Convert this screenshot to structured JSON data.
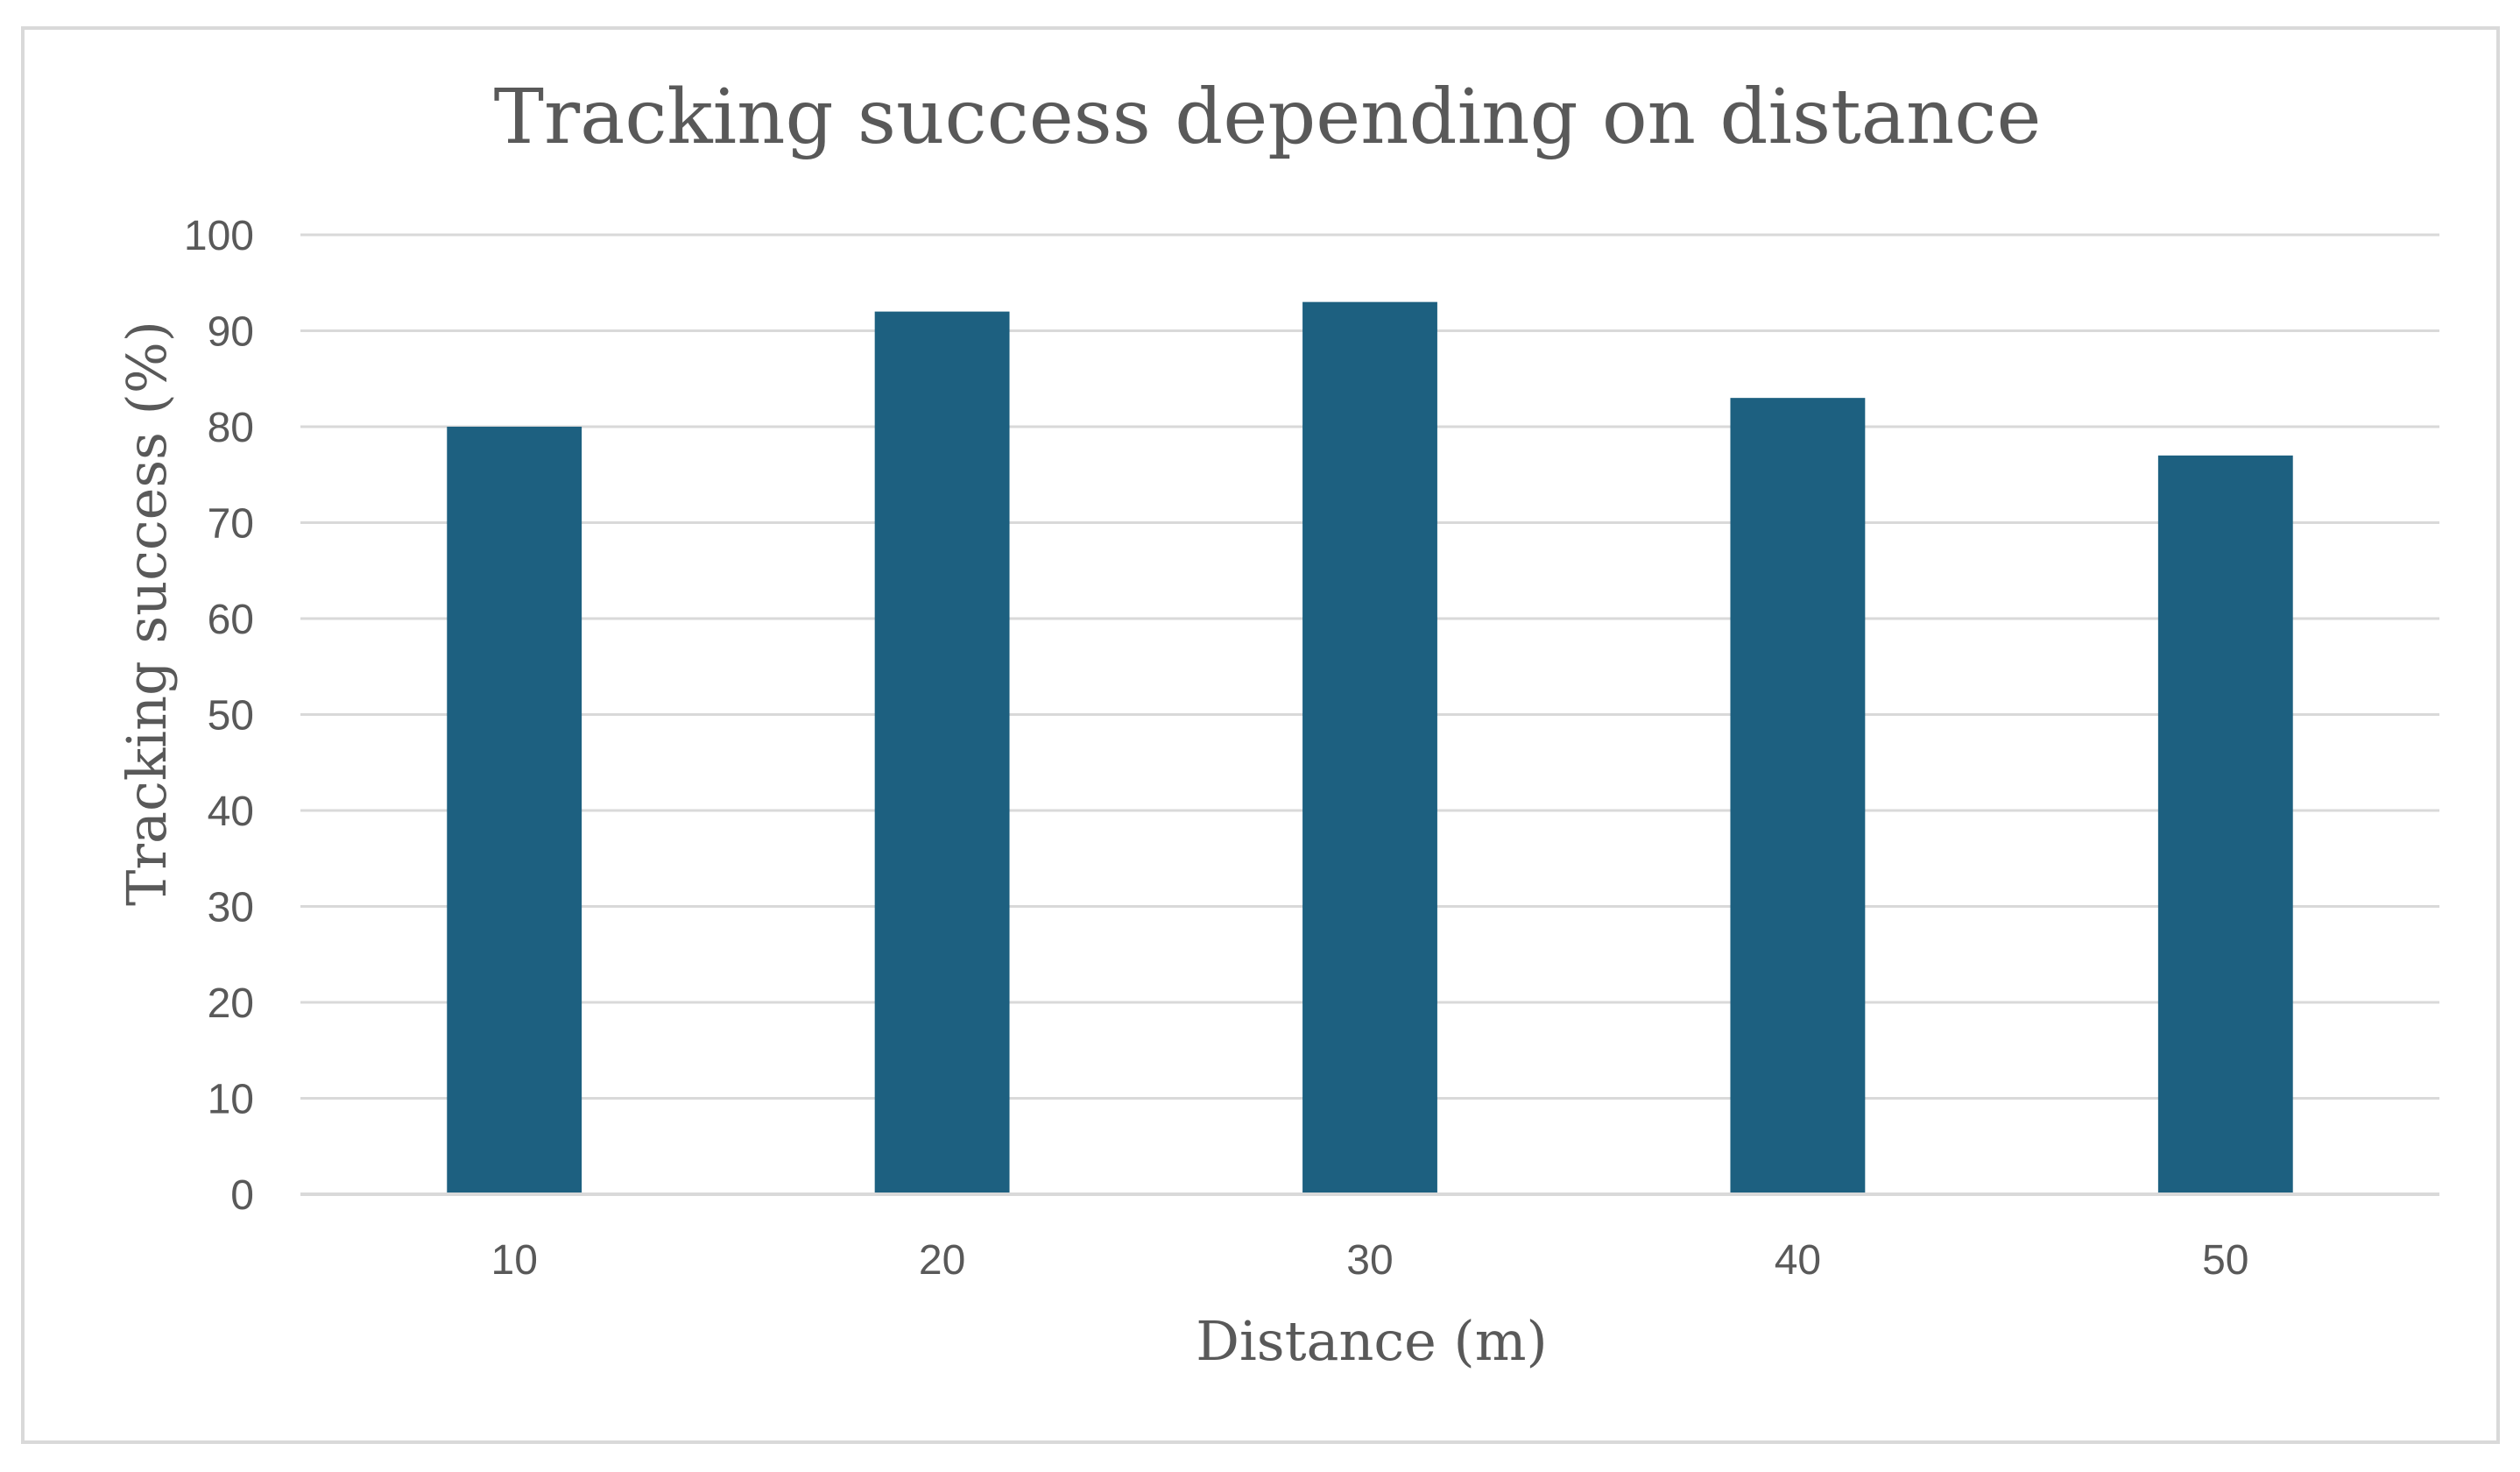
{
  "chart_data": {
    "type": "bar",
    "title": "Tracking success depending on distance",
    "xlabel": "Distance (m)",
    "ylabel": "Tracking success (%)",
    "categories": [
      "10",
      "20",
      "30",
      "40",
      "50"
    ],
    "values": [
      80,
      92,
      93,
      83,
      77
    ],
    "ylim": [
      0,
      100
    ],
    "yticks": [
      "0",
      "10",
      "20",
      "30",
      "40",
      "50",
      "60",
      "70",
      "80",
      "90",
      "100"
    ],
    "grid": true,
    "bar_color": "#1d6080",
    "grid_color": "#d9d9d9",
    "text_color": "#595959"
  }
}
